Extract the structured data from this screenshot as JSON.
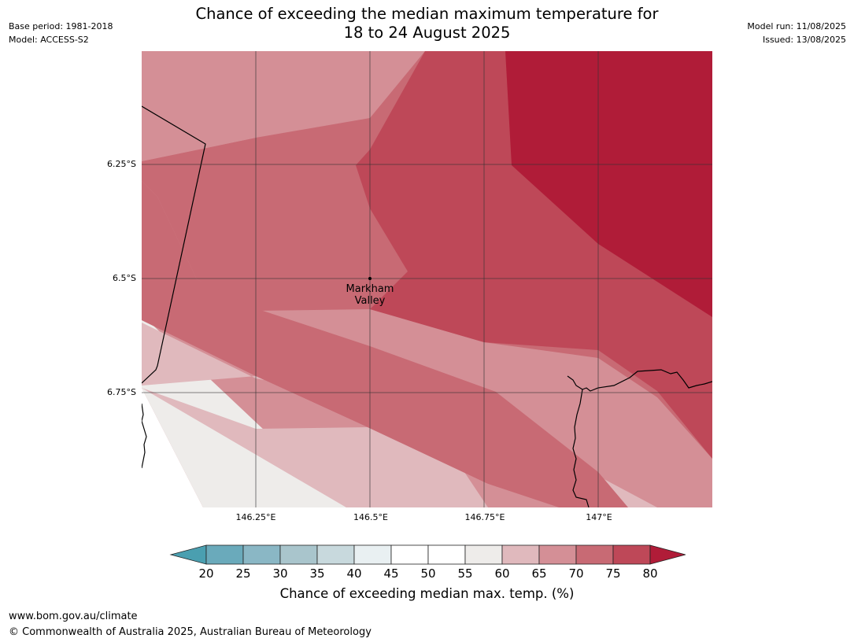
{
  "header": {
    "title_line1": "Chance of exceeding the median maximum temperature for",
    "title_line2": "18 to 24 August 2025",
    "base_period": "Base period: 1981-2018",
    "model": "Model: ACCESS-S2",
    "model_run": "Model run: 11/08/2025",
    "issued": "Issued: 13/08/2025"
  },
  "map": {
    "lat_labels": [
      "6.25°S",
      "6.5°S",
      "6.75°S"
    ],
    "lon_labels": [
      "146.25°E",
      "146.5°E",
      "146.75°E",
      "147°E"
    ],
    "location": {
      "name_line1": "Markham",
      "name_line2": "Valley"
    }
  },
  "colorbar": {
    "ticks": [
      "20",
      "25",
      "30",
      "35",
      "40",
      "45",
      "50",
      "55",
      "60",
      "65",
      "70",
      "75",
      "80"
    ],
    "label": "Chance of exceeding median max. temp. (%)",
    "colors": {
      "below_20": "#4a9fb0",
      "20-25": "#6aaabb",
      "25-30": "#8ab7c5",
      "30-35": "#a9c5cc",
      "35-40": "#c8d9dd",
      "40-45": "#e9f0f2",
      "45-50": "#ffffff",
      "50-55": "#ffffff",
      "55-60": "#eeecea",
      "60-65": "#e0b9bd",
      "65-70": "#d48f96",
      "70-75": "#c86a74",
      "75-80": "#be4858",
      "above_80": "#b01c38"
    }
  },
  "footer": {
    "url": "www.bom.gov.au/climate",
    "copyright": "© Commonwealth of Australia 2025, Australian Bureau of Meteorology"
  }
}
